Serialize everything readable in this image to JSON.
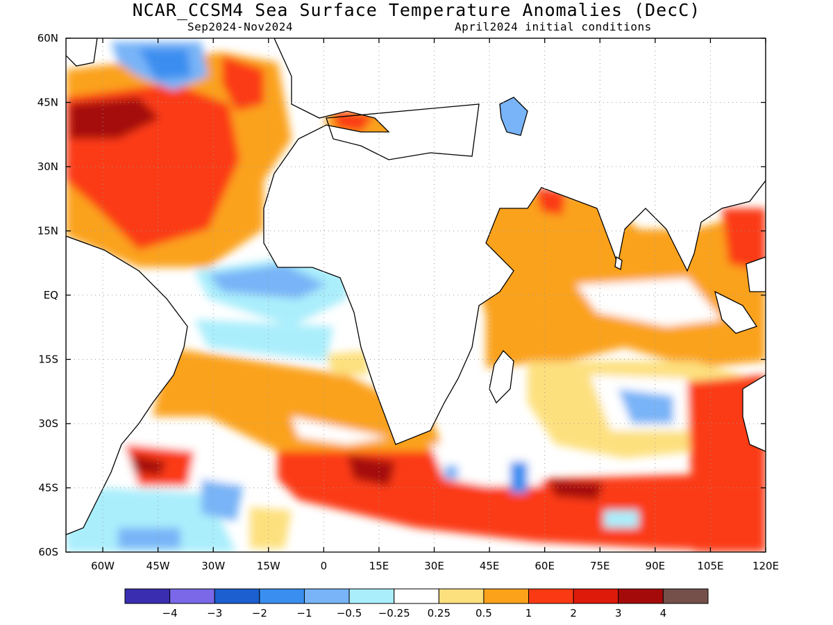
{
  "title": "NCAR_CCSM4 Sea Surface Temperature Anomalies (DecC)",
  "subtitle_left": "Sep2024-Nov2024",
  "subtitle_right": "April2024 initial conditions",
  "map": {
    "lon_range": [
      -70,
      120
    ],
    "lat_range": [
      -60,
      60
    ],
    "x_ticks": [
      "60W",
      "45W",
      "30W",
      "15W",
      "0",
      "15E",
      "30E",
      "45E",
      "60E",
      "75E",
      "90E",
      "105E",
      "120E"
    ],
    "y_ticks": [
      "60N",
      "45N",
      "30N",
      "15N",
      "EQ",
      "15S",
      "30S",
      "45S",
      "60S"
    ],
    "grid": "dotted"
  },
  "colorbar": {
    "colors": [
      "#3a2db0",
      "#7a68e8",
      "#1b5fd0",
      "#3a8ef0",
      "#78b4f7",
      "#aaeefc",
      "#ffffff",
      "#fde07e",
      "#fba21a",
      "#fb3a14",
      "#de1a0a",
      "#a50a0a",
      "#75504a"
    ],
    "labels": [
      "-4",
      "-3",
      "-2",
      "-1",
      "-0.5",
      "-0.25",
      "0.25",
      "0.5",
      "1",
      "2",
      "3",
      "4"
    ]
  }
}
